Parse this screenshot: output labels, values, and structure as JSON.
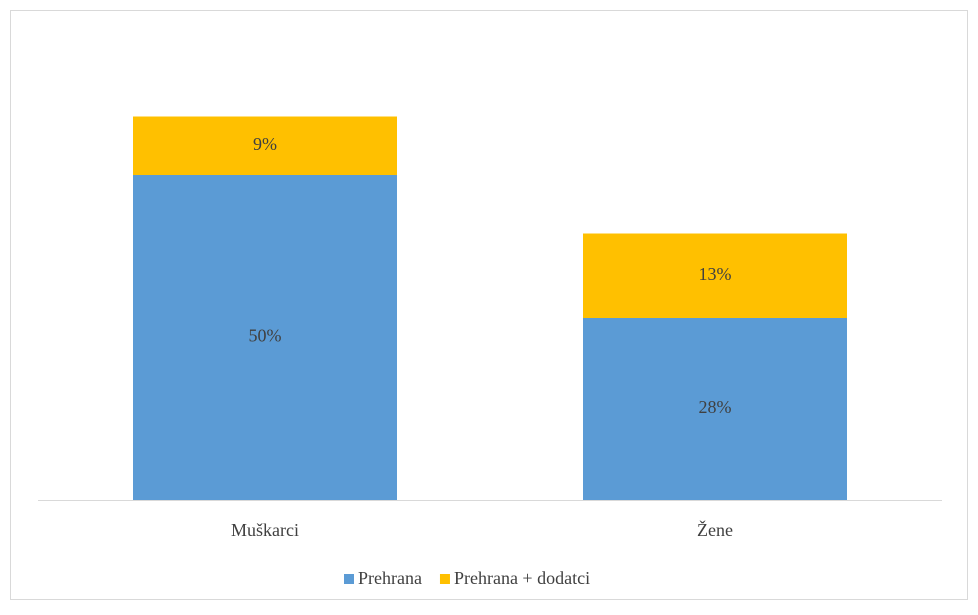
{
  "chart_data": {
    "type": "stacked_bar",
    "categories": [
      "Muškarci",
      "Žene"
    ],
    "series": [
      {
        "name": "Prehrana",
        "color": "#5b9bd5",
        "values": [
          50,
          28
        ],
        "value_labels": [
          "50%",
          "28%"
        ]
      },
      {
        "name": "Prehrana + dodatci",
        "color": "#ffc000",
        "values": [
          9,
          13
        ],
        "value_labels": [
          "9%",
          "13%"
        ]
      }
    ],
    "ylim": [
      0,
      70
    ],
    "legend": "bottom"
  }
}
